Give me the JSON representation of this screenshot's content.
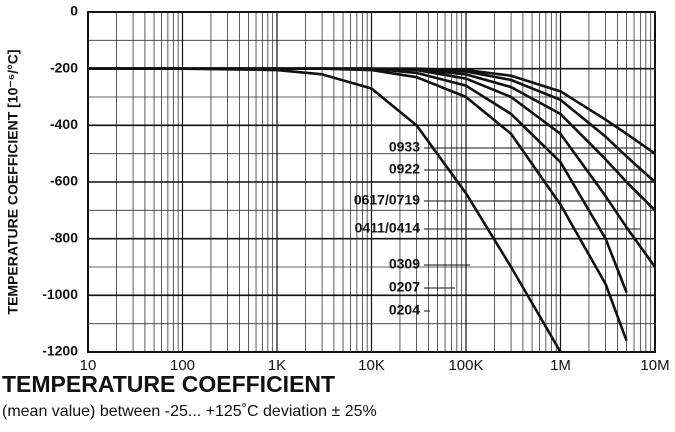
{
  "chart_data": {
    "type": "line",
    "title": "TEMPERATURE COEFFICIENT",
    "subtitle": "(mean value) between -25... +125˚C deviation ± 25%",
    "y_label": "TEMPERATURE COEFFICIENT [10⁻⁶/°C]",
    "log_x": true,
    "x": [
      10,
      100,
      1000,
      3000,
      10000,
      30000,
      100000,
      300000,
      1000000,
      3000000,
      5000000,
      10000000
    ],
    "series": [
      {
        "name": "0933",
        "color": "#111111",
        "values": [
          -200,
          -200,
          -200,
          -200,
          -200,
          -200,
          -205,
          -225,
          -280,
          -380,
          -430,
          -500
        ]
      },
      {
        "name": "0922",
        "color": "#111111",
        "values": [
          -200,
          -200,
          -200,
          -200,
          -200,
          -200,
          -210,
          -240,
          -310,
          -440,
          -510,
          -600
        ]
      },
      {
        "name": "0617/0719",
        "color": "#111111",
        "values": [
          -200,
          -200,
          -200,
          -200,
          -200,
          -203,
          -220,
          -265,
          -360,
          -520,
          -600,
          -700
        ]
      },
      {
        "name": "0411/0414",
        "color": "#111111",
        "values": [
          -200,
          -200,
          -200,
          -200,
          -200,
          -205,
          -235,
          -300,
          -430,
          -650,
          -760,
          -900
        ]
      },
      {
        "name": "0309",
        "color": "#111111",
        "values": [
          -200,
          -200,
          -200,
          -200,
          -200,
          -215,
          -260,
          -360,
          -530,
          -800,
          -990,
          null
        ]
      },
      {
        "name": "0207",
        "color": "#111111",
        "values": [
          -200,
          -200,
          -200,
          -200,
          -205,
          -230,
          -300,
          -430,
          -680,
          -960,
          -1160,
          null
        ]
      },
      {
        "name": "0204",
        "color": "#111111",
        "values": [
          -200,
          -200,
          -205,
          -220,
          -270,
          -400,
          -640,
          -900,
          -1200,
          null,
          null,
          null
        ]
      }
    ],
    "xlim": [
      10,
      10000000
    ],
    "xticks": [
      10,
      100,
      {
        "value": 1000,
        "label": "1K"
      },
      {
        "value": 10000,
        "label": "10K"
      },
      {
        "value": 100000,
        "label": "100K"
      },
      {
        "value": 1000000,
        "label": "1M"
      },
      {
        "value": 10000000,
        "label": "10M"
      }
    ],
    "x_minor_ticks": [
      20,
      30,
      40,
      50,
      60,
      70,
      80,
      90,
      200,
      300,
      400,
      500,
      600,
      700,
      800,
      900,
      2000,
      3000,
      4000,
      5000,
      6000,
      7000,
      8000,
      9000,
      20000,
      30000,
      40000,
      50000,
      60000,
      70000,
      80000,
      90000,
      200000,
      300000,
      400000,
      500000,
      600000,
      700000,
      800000,
      900000,
      2000000,
      3000000,
      4000000,
      5000000,
      6000000,
      7000000,
      8000000,
      9000000
    ],
    "ylim": [
      -1200,
      0
    ],
    "yticks": [
      0,
      -200,
      -400,
      -600,
      -800,
      -1000,
      -1200
    ],
    "y_minor_ticks": [
      -100,
      -300,
      -500,
      -700,
      -900,
      -1100
    ],
    "grid": true
  }
}
